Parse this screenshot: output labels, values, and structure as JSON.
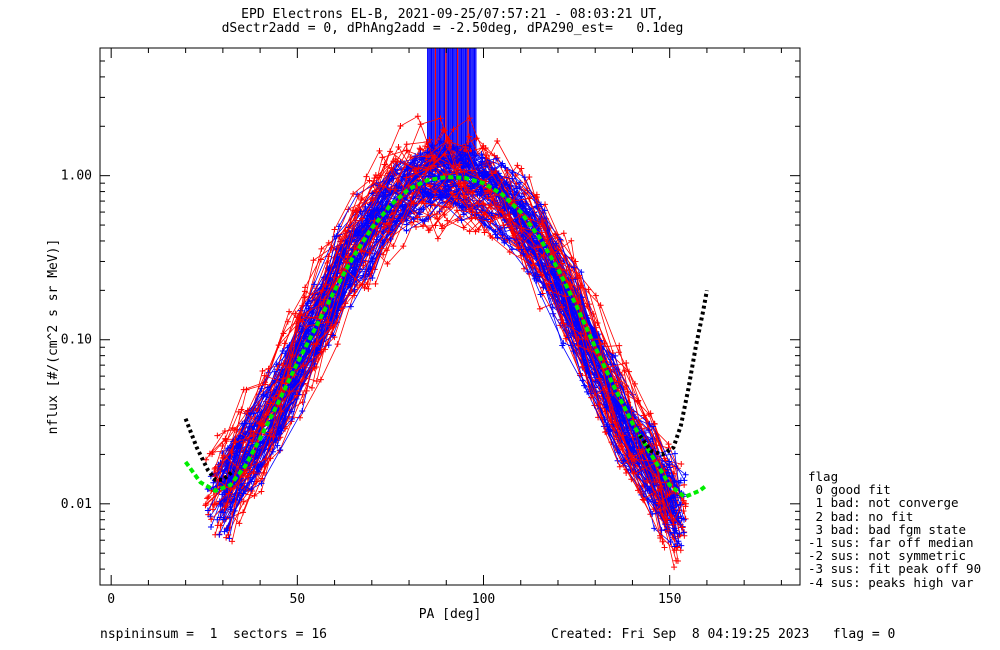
{
  "title": {
    "line1": "EPD Electrons EL-B, 2021-09-25/07:57:21 - 08:03:21 UT,",
    "line2": "dSectr2add = 0, dPhAng2add = -2.50deg, dPA290_est=   0.1deg"
  },
  "legend": {
    "heading": "flag",
    "items": [
      " 0 good fit",
      " 1 bad: not converge",
      " 2 bad: no fit",
      " 3 bad: bad fgm state",
      "-1 sus: far off median",
      "-2 sus: not symmetric",
      "-3 sus: fit peak off 90",
      "-4 sus: peaks high var"
    ]
  },
  "footer": {
    "left": "nspininsum =  1  sectors = 16",
    "right": "Created: Fri Sep  8 04:19:25 2023   flag = 0"
  },
  "colors": {
    "blue": "#0000ff",
    "red": "#ff0000",
    "green": "#00ee00",
    "black": "#000000"
  },
  "chart_data": {
    "type": "line",
    "xlabel": "PA [deg]",
    "ylabel": "nflux [#/(cm^2 s sr MeV)]",
    "xlim": [
      -3,
      185
    ],
    "ylim": [
      0.0032,
      6.0
    ],
    "yscale": "log",
    "x_ticks": [
      0,
      50,
      100,
      150
    ],
    "x_tick_labels": [
      "0",
      "50",
      "100",
      "150"
    ],
    "y_ticks": [
      0.01,
      0.1,
      1.0
    ],
    "y_tick_labels": [
      "0.01",
      "0.10",
      "1.00"
    ],
    "series": [
      {
        "style": "blue-crosses",
        "x": [
          29,
          33,
          38,
          43,
          48,
          53,
          58,
          63,
          68,
          73,
          78,
          83,
          88,
          93,
          98,
          103,
          108,
          113,
          118,
          123,
          128,
          133,
          138,
          143,
          148,
          151
        ],
        "y": [
          0.011,
          0.015,
          0.022,
          0.035,
          0.06,
          0.1,
          0.17,
          0.28,
          0.42,
          0.6,
          0.78,
          0.9,
          0.95,
          0.95,
          0.88,
          0.75,
          0.58,
          0.4,
          0.26,
          0.15,
          0.085,
          0.048,
          0.028,
          0.018,
          0.012,
          0.009
        ]
      },
      {
        "style": "red-crosses",
        "x": [
          29,
          33,
          38,
          43,
          48,
          53,
          58,
          63,
          68,
          73,
          78,
          83,
          88,
          93,
          98,
          103,
          108,
          113,
          118,
          123,
          128,
          133,
          138,
          143,
          148,
          151
        ],
        "y": [
          0.012,
          0.016,
          0.024,
          0.038,
          0.065,
          0.11,
          0.18,
          0.3,
          0.45,
          0.63,
          0.8,
          0.92,
          0.97,
          0.97,
          0.9,
          0.78,
          0.62,
          0.44,
          0.3,
          0.18,
          0.1,
          0.056,
          0.032,
          0.02,
          0.013,
          0.009
        ]
      },
      {
        "style": "green-dashed-fit",
        "x": [
          20,
          24,
          28,
          32,
          36,
          40,
          45,
          50,
          55,
          60,
          65,
          70,
          75,
          80,
          85,
          90,
          95,
          100,
          105,
          110,
          115,
          120,
          125,
          130,
          135,
          140,
          145,
          150,
          154,
          158,
          160
        ],
        "y": [
          0.018,
          0.0135,
          0.012,
          0.013,
          0.017,
          0.025,
          0.042,
          0.072,
          0.12,
          0.2,
          0.32,
          0.48,
          0.66,
          0.83,
          0.94,
          0.98,
          0.97,
          0.9,
          0.77,
          0.6,
          0.42,
          0.27,
          0.16,
          0.09,
          0.052,
          0.031,
          0.02,
          0.013,
          0.011,
          0.012,
          0.013
        ]
      },
      {
        "style": "black-dotted-fit",
        "x": [
          20,
          23,
          26,
          28,
          30,
          33
        ],
        "y": [
          0.033,
          0.022,
          0.016,
          0.014,
          0.014,
          0.016
        ]
      },
      {
        "style": "black-dotted-fit",
        "x": [
          142,
          145,
          148,
          151,
          153,
          155,
          157,
          159,
          160
        ],
        "y": [
          0.026,
          0.021,
          0.02,
          0.022,
          0.03,
          0.05,
          0.09,
          0.15,
          0.2
        ]
      }
    ],
    "saturated_band": {
      "x_range": [
        85,
        98
      ],
      "y_range": [
        1.15,
        6.0
      ]
    }
  }
}
